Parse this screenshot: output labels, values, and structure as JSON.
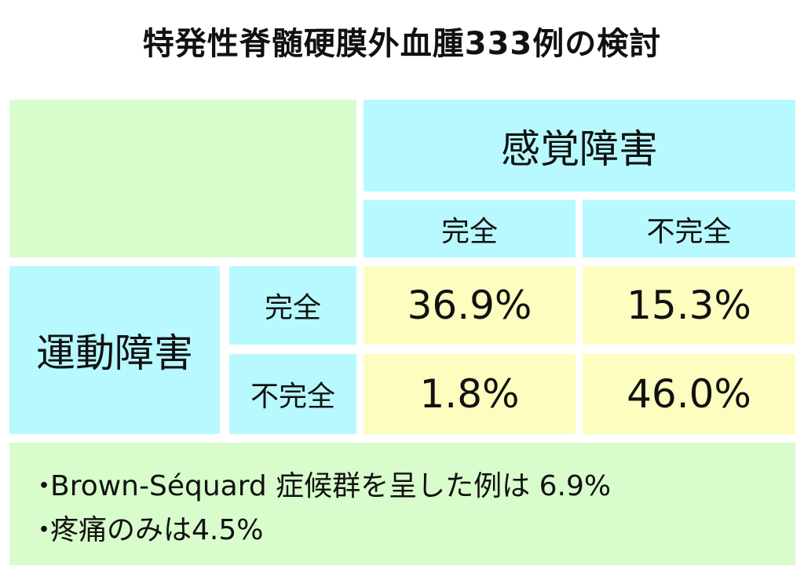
{
  "title": "特発性脊髄硬膜外血腫333例の検討",
  "table": {
    "sensory_header": "感覚障害",
    "motor_header": "運動障害",
    "columns": [
      "完全",
      "不完全"
    ],
    "rows": [
      "完全",
      "不完全"
    ],
    "values": [
      [
        "36.9%",
        "15.3%"
      ],
      [
        "1.8%",
        "46.0%"
      ]
    ]
  },
  "notes": {
    "bullet": "・",
    "lines": [
      "Brown-Séquard 症候群を呈した例は 6.9%",
      "疼痛のみは4.5%"
    ]
  },
  "colors": {
    "green": "#d9fccc",
    "cyan": "#b8f9ff",
    "yellow": "#fdfdc0"
  }
}
